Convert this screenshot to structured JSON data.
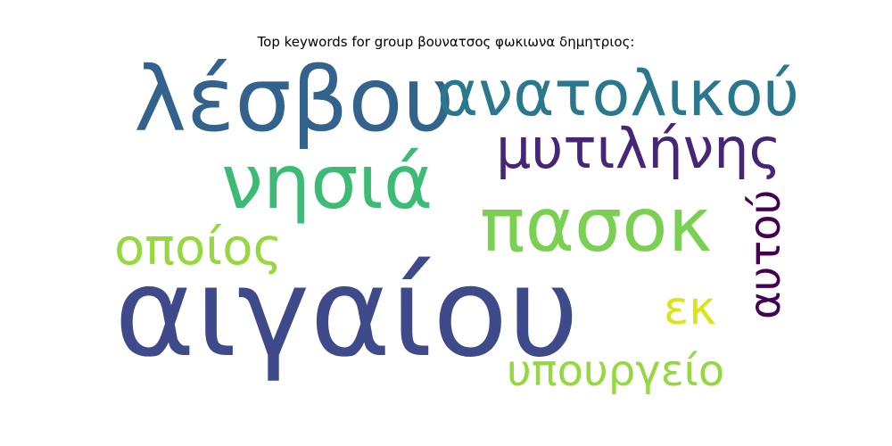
{
  "title": "Top keywords for group βουνατσος φωκιωνα δημητριος:",
  "words": [
    {
      "text": "λέσβου",
      "color": "#33638d"
    },
    {
      "text": "ανατολικού",
      "color": "#2a788e"
    },
    {
      "text": "μυτιλήνης",
      "color": "#482677"
    },
    {
      "text": "νησιά",
      "color": "#3cbb75"
    },
    {
      "text": "πασοκ",
      "color": "#7ad151"
    },
    {
      "text": "οποίος",
      "color": "#95d840"
    },
    {
      "text": "αυτού",
      "color": "#440154"
    },
    {
      "text": "αιγαίου",
      "color": "#3f4a8a"
    },
    {
      "text": "εκ",
      "color": "#dce319"
    },
    {
      "text": "υπουργείο",
      "color": "#95d840"
    }
  ]
}
